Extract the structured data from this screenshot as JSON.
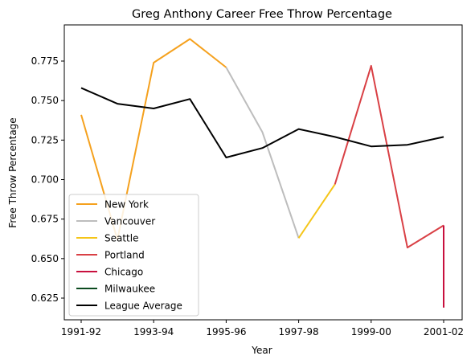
{
  "chart_data": {
    "type": "line",
    "title": "Greg Anthony Career Free Throw Percentage",
    "xlabel": "Year",
    "ylabel": "Free Throw Percentage",
    "x_ticks": [
      "1991-92",
      "1993-94",
      "1995-96",
      "1997-98",
      "1999-00",
      "2001-02"
    ],
    "y_ticks": [
      "0.625",
      "0.650",
      "0.675",
      "0.700",
      "0.725",
      "0.750",
      "0.775"
    ],
    "xlim": [
      "1991-92",
      "2001-02"
    ],
    "ylim": [
      0.611,
      0.979
    ],
    "grid": false,
    "legend_position": "lower-left",
    "series": [
      {
        "name": "New York",
        "color": "#F5A11E",
        "points": [
          [
            "1991-92",
            0.741
          ],
          [
            "1992-93",
            0.662
          ],
          [
            "1993-94",
            0.774
          ],
          [
            "1994-95",
            0.789
          ],
          [
            "1995-96",
            0.771
          ]
        ]
      },
      {
        "name": "Vancouver",
        "color": "#BDBDBD",
        "points": [
          [
            "1995-96",
            0.771
          ],
          [
            "1996-97",
            0.73
          ],
          [
            "1997-98",
            0.663
          ]
        ]
      },
      {
        "name": "Seattle",
        "color": "#F5C518",
        "points": [
          [
            "1997-98",
            0.663
          ],
          [
            "1998-99",
            0.697
          ]
        ]
      },
      {
        "name": "Portland",
        "color": "#D94045",
        "points": [
          [
            "1998-99",
            0.697
          ],
          [
            "1999-00",
            0.772
          ],
          [
            "2000-01",
            0.657
          ],
          [
            "2001-02",
            0.671
          ]
        ]
      },
      {
        "name": "Chicago",
        "color": "#C8103E",
        "points": [
          [
            "2001-02",
            0.671
          ],
          [
            "2001-02",
            0.619
          ]
        ]
      },
      {
        "name": "Milwaukee",
        "color": "#0B4A1F",
        "points": []
      },
      {
        "name": "League Average",
        "color": "#000000",
        "points": [
          [
            "1991-92",
            0.758
          ],
          [
            "1992-93",
            0.748
          ],
          [
            "1993-94",
            0.745
          ],
          [
            "1994-95",
            0.751
          ],
          [
            "1995-96",
            0.714
          ],
          [
            "1996-97",
            0.72
          ],
          [
            "1997-98",
            0.732
          ],
          [
            "1998-99",
            0.727
          ],
          [
            "1999-00",
            0.721
          ],
          [
            "2000-01",
            0.722
          ],
          [
            "2001-02",
            0.727
          ]
        ]
      }
    ]
  }
}
